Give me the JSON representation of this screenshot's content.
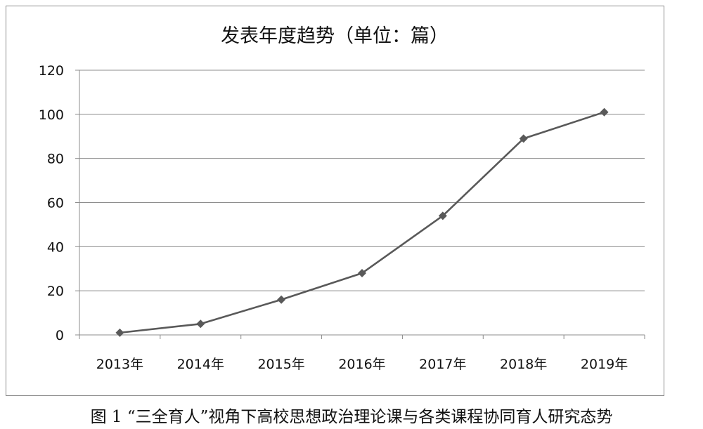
{
  "caption": "图 1 “三全育人”视角下高校思想政治理论课与各类课程协同育人研究态势",
  "chart_data": {
    "type": "line",
    "title": "发表年度趋势（单位：篇）",
    "categories": [
      "2013年",
      "2014年",
      "2015年",
      "2016年",
      "2017年",
      "2018年",
      "2019年"
    ],
    "series": [
      {
        "values": [
          1,
          5,
          16,
          28,
          54,
          89,
          101
        ]
      }
    ],
    "yticks": [
      "0",
      "20",
      "40",
      "60",
      "80",
      "100",
      "120"
    ],
    "ylim": [
      0,
      120
    ],
    "grid": true,
    "legend": "none",
    "line_color": "#595959",
    "grid_color": "#8c8c8c"
  }
}
